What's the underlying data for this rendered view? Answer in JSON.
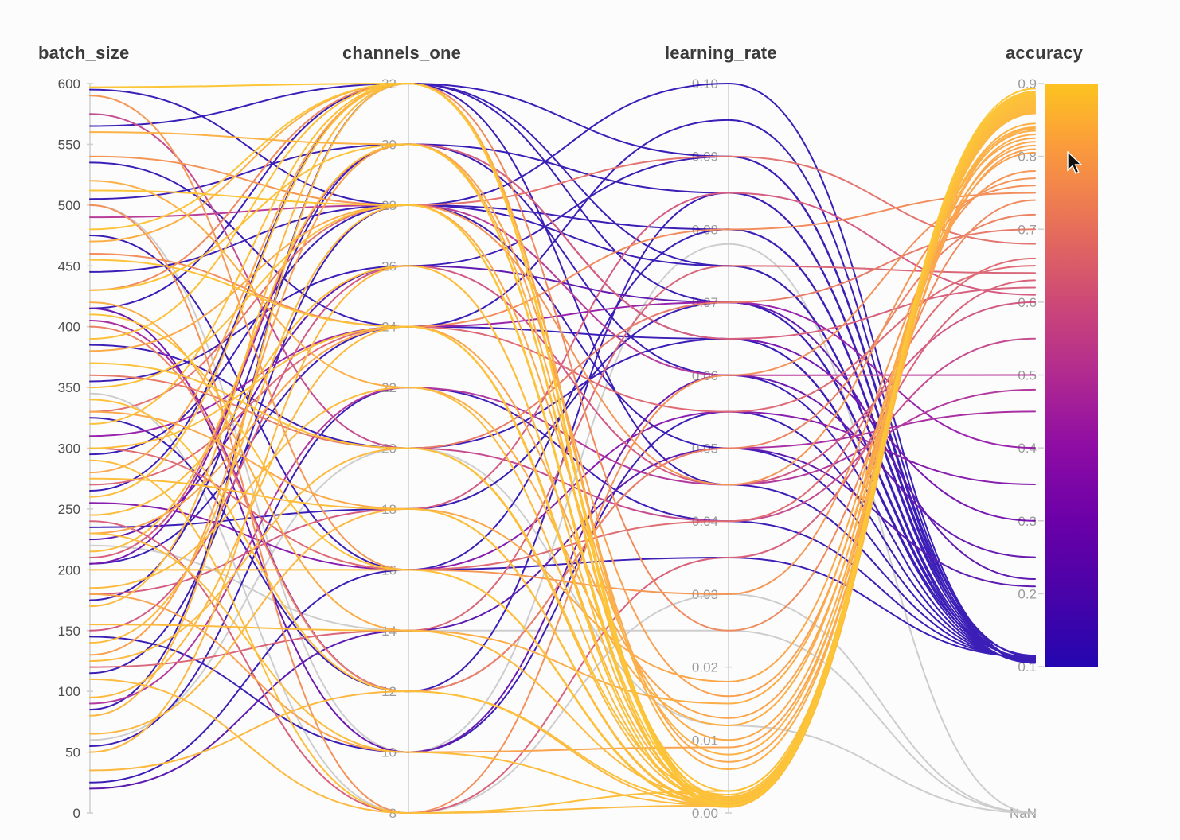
{
  "chart_data": {
    "type": "parallel-coordinates",
    "axes": [
      {
        "name": "batch_size",
        "min": 0,
        "max": 600,
        "ticks": [
          "600",
          "550",
          "500",
          "450",
          "400",
          "350",
          "300",
          "250",
          "200",
          "150",
          "100",
          "50",
          "0"
        ],
        "tick_values": [
          600,
          550,
          500,
          450,
          400,
          350,
          300,
          250,
          200,
          150,
          100,
          50,
          0
        ]
      },
      {
        "name": "channels_one",
        "min": 8,
        "max": 32,
        "ticks": [
          "32",
          "30",
          "28",
          "26",
          "24",
          "22",
          "20",
          "18",
          "16",
          "14",
          "12",
          "10",
          "8"
        ],
        "tick_values": [
          32,
          30,
          28,
          26,
          24,
          22,
          20,
          18,
          16,
          14,
          12,
          10,
          8
        ]
      },
      {
        "name": "learning_rate",
        "min": 0,
        "max": 0.1,
        "ticks": [
          "0.10",
          "0.09",
          "0.08",
          "0.07",
          "0.06",
          "0.05",
          "0.04",
          "0.03",
          "0.02",
          "0.01",
          "0.00"
        ],
        "tick_values": [
          0.1,
          0.09,
          0.08,
          0.07,
          0.06,
          0.05,
          0.04,
          0.03,
          0.02,
          0.01,
          0.0
        ]
      },
      {
        "name": "accuracy",
        "min": 0.1,
        "max": 0.9,
        "ticks": [
          "0.9",
          "0.8",
          "0.7",
          "0.6",
          "0.5",
          "0.4",
          "0.3",
          "0.2",
          "0.1"
        ],
        "tick_values": [
          0.9,
          0.8,
          0.7,
          0.6,
          0.5,
          0.4,
          0.3,
          0.2,
          0.1
        ],
        "nan_label": "NaN"
      }
    ],
    "color_scale": {
      "field": "accuracy",
      "nan_color": "#c9c9c9",
      "stops": [
        [
          0.0,
          "#2406b0"
        ],
        [
          0.13,
          "#4a03a8"
        ],
        [
          0.25,
          "#6b00a8"
        ],
        [
          0.38,
          "#8f0da4"
        ],
        [
          0.5,
          "#b12a90"
        ],
        [
          0.62,
          "#cc4778"
        ],
        [
          0.72,
          "#e06461"
        ],
        [
          0.82,
          "#f2844b"
        ],
        [
          0.9,
          "#fb9e3a"
        ],
        [
          1.0,
          "#fdc420"
        ]
      ]
    },
    "fields": [
      "batch_size",
      "channels_one",
      "learning_rate",
      "accuracy"
    ],
    "runs": [
      [
        597,
        32,
        0.001,
        0.893
      ],
      [
        512,
        28,
        0.002,
        0.889
      ],
      [
        480,
        32,
        0.0015,
        0.887
      ],
      [
        455,
        24,
        0.001,
        0.885
      ],
      [
        430,
        30,
        0.003,
        0.884
      ],
      [
        410,
        16,
        0.001,
        0.883
      ],
      [
        390,
        32,
        0.002,
        0.882
      ],
      [
        370,
        20,
        0.0025,
        0.881
      ],
      [
        350,
        28,
        0.001,
        0.88
      ],
      [
        340,
        12,
        0.0015,
        0.879
      ],
      [
        320,
        32,
        0.002,
        0.878
      ],
      [
        300,
        24,
        0.001,
        0.877
      ],
      [
        290,
        8,
        0.003,
        0.876
      ],
      [
        275,
        18,
        0.0012,
        0.875
      ],
      [
        260,
        32,
        0.002,
        0.874
      ],
      [
        245,
        26,
        0.0018,
        0.873
      ],
      [
        230,
        10,
        0.001,
        0.872
      ],
      [
        215,
        30,
        0.0022,
        0.871
      ],
      [
        200,
        16,
        0.0008,
        0.87
      ],
      [
        185,
        22,
        0.0015,
        0.869
      ],
      [
        170,
        32,
        0.001,
        0.868
      ],
      [
        155,
        14,
        0.002,
        0.867
      ],
      [
        140,
        28,
        0.0012,
        0.866
      ],
      [
        125,
        20,
        0.0016,
        0.865
      ],
      [
        110,
        8,
        0.001,
        0.864
      ],
      [
        95,
        24,
        0.002,
        0.863
      ],
      [
        80,
        32,
        0.0014,
        0.862
      ],
      [
        65,
        18,
        0.001,
        0.861
      ],
      [
        50,
        26,
        0.0018,
        0.86
      ],
      [
        35,
        12,
        0.001,
        0.859
      ],
      [
        560,
        30,
        0.008,
        0.845
      ],
      [
        520,
        22,
        0.012,
        0.84
      ],
      [
        470,
        32,
        0.006,
        0.838
      ],
      [
        420,
        14,
        0.015,
        0.835
      ],
      [
        380,
        28,
        0.01,
        0.83
      ],
      [
        330,
        18,
        0.018,
        0.825
      ],
      [
        280,
        32,
        0.007,
        0.82
      ],
      [
        230,
        24,
        0.013,
        0.815
      ],
      [
        180,
        10,
        0.009,
        0.81
      ],
      [
        130,
        30,
        0.016,
        0.805
      ],
      [
        590,
        16,
        0.03,
        0.78
      ],
      [
        540,
        28,
        0.045,
        0.77
      ],
      [
        500,
        8,
        0.06,
        0.76
      ],
      [
        460,
        24,
        0.08,
        0.75
      ],
      [
        430,
        32,
        0.025,
        0.74
      ],
      [
        400,
        12,
        0.05,
        0.72
      ],
      [
        360,
        20,
        0.07,
        0.7
      ],
      [
        330,
        28,
        0.09,
        0.68
      ],
      [
        300,
        16,
        0.04,
        0.66
      ],
      [
        270,
        24,
        0.055,
        0.65
      ],
      [
        240,
        8,
        0.035,
        0.63
      ],
      [
        210,
        30,
        0.065,
        0.62
      ],
      [
        180,
        18,
        0.085,
        0.61
      ],
      [
        150,
        26,
        0.045,
        0.6
      ],
      [
        120,
        14,
        0.075,
        0.64
      ],
      [
        575,
        20,
        0.04,
        0.55
      ],
      [
        490,
        28,
        0.06,
        0.5
      ],
      [
        405,
        12,
        0.05,
        0.45
      ],
      [
        310,
        24,
        0.07,
        0.4
      ],
      [
        255,
        16,
        0.055,
        0.35
      ],
      [
        205,
        30,
        0.065,
        0.3
      ],
      [
        90,
        22,
        0.045,
        0.48
      ],
      [
        415,
        10,
        0.06,
        0.25
      ],
      [
        225,
        26,
        0.07,
        0.22
      ],
      [
        20,
        14,
        0.05,
        0.21
      ],
      [
        595,
        28,
        0.1,
        0.105
      ],
      [
        565,
        32,
        0.09,
        0.106
      ],
      [
        535,
        24,
        0.095,
        0.107
      ],
      [
        505,
        30,
        0.085,
        0.108
      ],
      [
        475,
        16,
        0.08,
        0.109
      ],
      [
        445,
        28,
        0.075,
        0.11
      ],
      [
        415,
        32,
        0.07,
        0.111
      ],
      [
        385,
        20,
        0.065,
        0.112
      ],
      [
        355,
        26,
        0.09,
        0.113
      ],
      [
        325,
        12,
        0.085,
        0.114
      ],
      [
        295,
        28,
        0.08,
        0.115
      ],
      [
        265,
        32,
        0.075,
        0.105
      ],
      [
        235,
        18,
        0.07,
        0.106
      ],
      [
        205,
        24,
        0.065,
        0.107
      ],
      [
        175,
        30,
        0.06,
        0.108
      ],
      [
        145,
        10,
        0.055,
        0.109
      ],
      [
        115,
        28,
        0.05,
        0.11
      ],
      [
        85,
        32,
        0.045,
        0.111
      ],
      [
        55,
        22,
        0.04,
        0.112
      ],
      [
        25,
        16,
        0.035,
        0.113
      ],
      [
        345,
        8,
        0.03,
        null
      ],
      [
        220,
        14,
        0.025,
        null
      ],
      [
        500,
        10,
        0.078,
        null
      ],
      [
        60,
        20,
        0.012,
        null
      ]
    ]
  }
}
